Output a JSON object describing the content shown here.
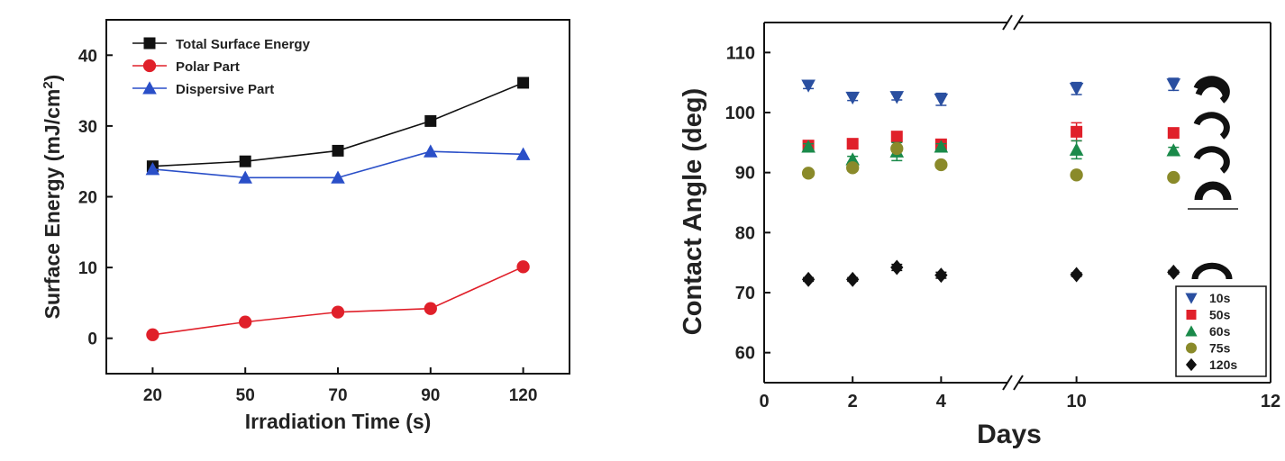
{
  "chart_data": [
    {
      "type": "line",
      "ylabel_parts": [
        "Surface Energy (mJ/cm",
        "2",
        ")"
      ],
      "xlabel": "Irradiation Time (s)",
      "categories": [
        "20",
        "50",
        "70",
        "90",
        "120"
      ],
      "ylim": [
        -5,
        45
      ],
      "yticks": [
        0,
        10,
        20,
        30,
        40
      ],
      "legend": "upper left",
      "series": [
        {
          "name": "Total Surface Energy",
          "color": "#111111",
          "marker": "square",
          "values": [
            24.3,
            25.0,
            26.5,
            30.7,
            36.1
          ]
        },
        {
          "name": "Polar Part",
          "color": "#e0202a",
          "marker": "circle",
          "values": [
            0.5,
            2.3,
            3.7,
            4.2,
            10.1
          ]
        },
        {
          "name": "Dispersive Part",
          "color": "#2a4fc8",
          "marker": "triangle-up",
          "values": [
            23.9,
            22.7,
            22.7,
            26.4,
            26.0
          ]
        }
      ]
    },
    {
      "type": "scatter",
      "ylabel": "Contact Angle (deg)",
      "xlabel": "Days",
      "x": [
        1,
        2,
        3,
        4,
        10,
        11
      ],
      "xlim": [
        0,
        12
      ],
      "xticks": [
        0,
        2,
        4,
        10,
        12
      ],
      "xbreak": [
        5.5,
        9.4
      ],
      "ylim": [
        55,
        115
      ],
      "yticks": [
        60,
        70,
        80,
        90,
        100,
        110
      ],
      "legend": "lower right",
      "series": [
        {
          "name": "10s",
          "color": "#2a4fa0",
          "marker": "triangle-down",
          "values": [
            104.5,
            102.5,
            102.6,
            102.2,
            104.0,
            104.7
          ],
          "errors": [
            0.5,
            0.5,
            0.5,
            1.0,
            1.0,
            1.0
          ]
        },
        {
          "name": "50s",
          "color": "#e0202a",
          "marker": "square",
          "values": [
            94.5,
            94.8,
            96.0,
            94.7,
            96.8,
            96.6
          ],
          "errors": [
            0.5,
            0.5,
            0.5,
            0.5,
            1.5,
            0.5
          ]
        },
        {
          "name": "60s",
          "color": "#1a8a4a",
          "marker": "triangle-up",
          "values": [
            94.3,
            92.2,
            93.5,
            94.3,
            93.8,
            93.7
          ],
          "errors": [
            0.5,
            0.5,
            1.5,
            0.5,
            1.5,
            0.5
          ]
        },
        {
          "name": "75s",
          "color": "#8a8a2a",
          "marker": "circle",
          "values": [
            89.9,
            90.8,
            94.0,
            91.3,
            89.6,
            89.2
          ],
          "errors": [
            0.5,
            0.5,
            0.5,
            0.5,
            0.3,
            0.3
          ]
        },
        {
          "name": "120s",
          "color": "#111111",
          "marker": "diamond",
          "values": [
            72.2,
            72.2,
            74.2,
            72.9,
            73.0,
            73.4
          ],
          "errors": [
            0.3,
            0.3,
            0.5,
            0.5,
            0.3,
            0.3
          ]
        }
      ]
    }
  ]
}
